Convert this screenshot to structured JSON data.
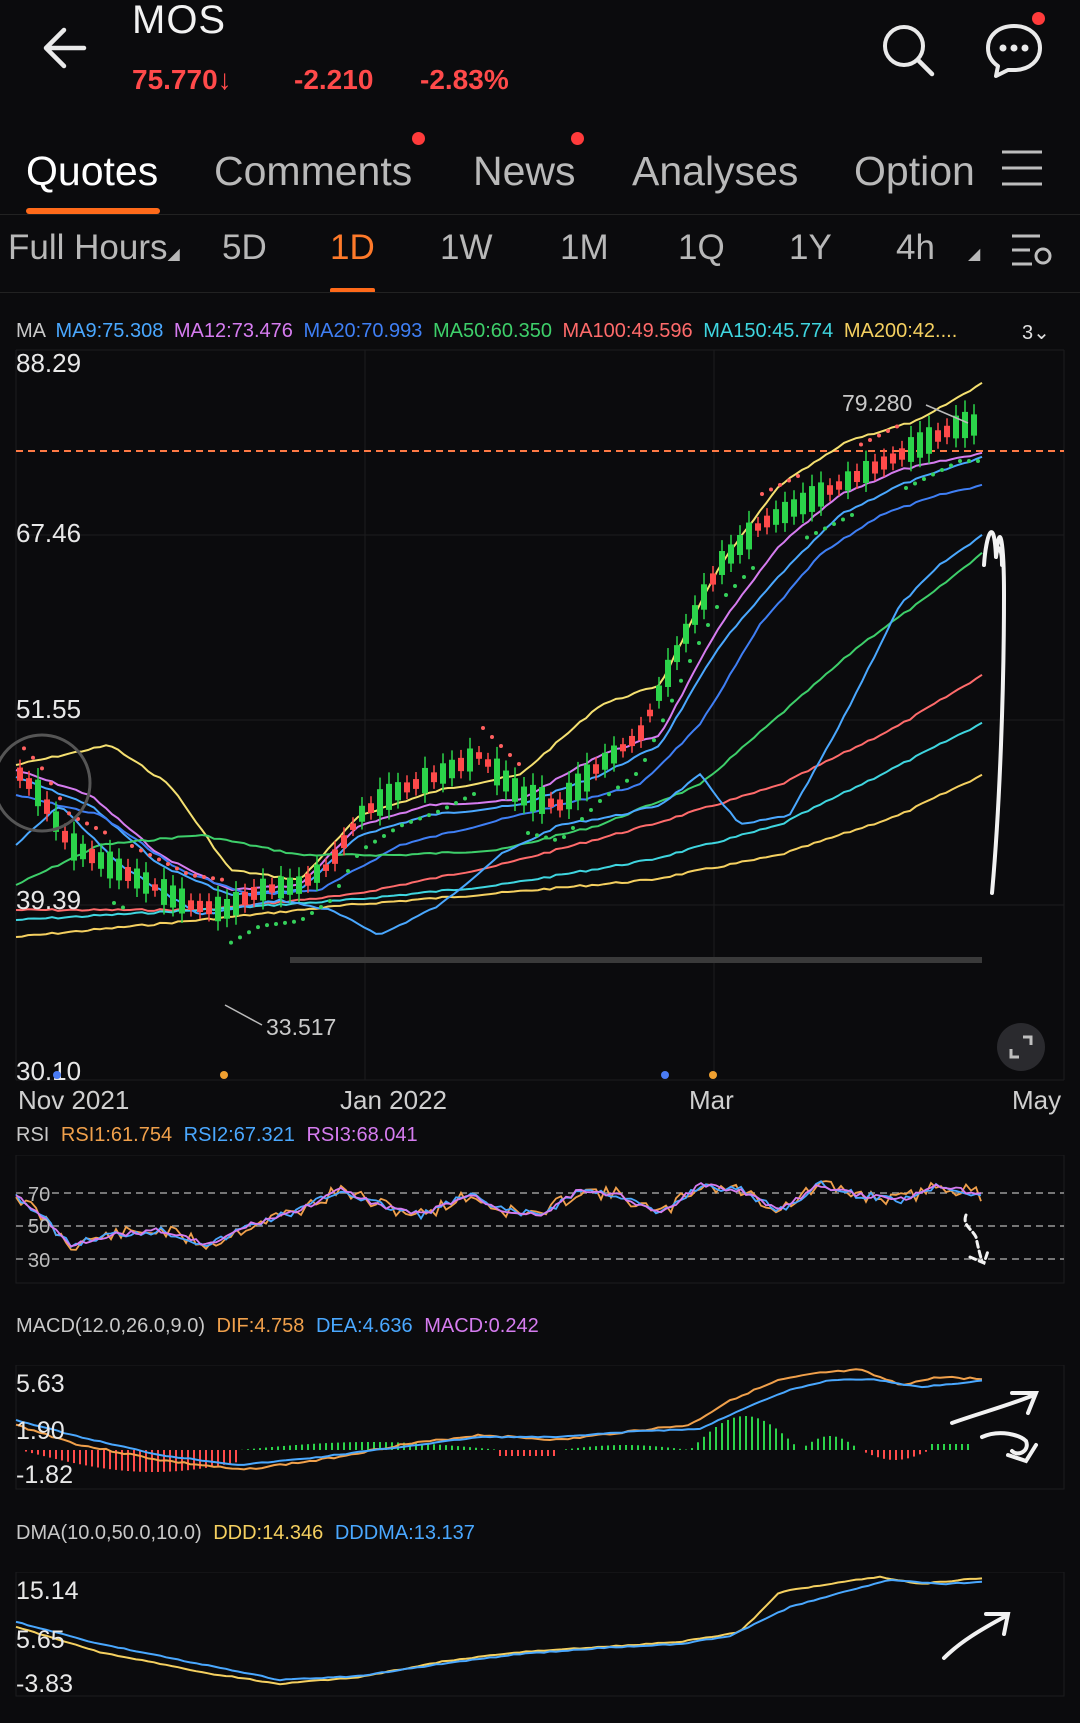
{
  "header": {
    "symbol": "MOS",
    "price": "75.770",
    "change": "-2.210",
    "change_pct": "-2.83%"
  },
  "tabs": [
    "Quotes",
    "Comments",
    "News",
    "Analyses",
    "Option"
  ],
  "timeframes": {
    "full_hours": "Full Hours",
    "items": [
      "5D",
      "1D",
      "1W",
      "1M",
      "1Q",
      "1Y",
      "4h"
    ],
    "active": "1D"
  },
  "ma_legend": {
    "label": "MA",
    "items": [
      {
        "text": "MA9:75.308",
        "color": "#4aa8ff"
      },
      {
        "text": "MA12:73.476",
        "color": "#d67cf0"
      },
      {
        "text": "MA20:70.993",
        "color": "#3f7ff5"
      },
      {
        "text": "MA50:60.350",
        "color": "#3ecf6a"
      },
      {
        "text": "MA100:49.596",
        "color": "#ff6b6b"
      },
      {
        "text": "MA150:45.774",
        "color": "#3fd6e0"
      },
      {
        "text": "MA200:42....",
        "color": "#f5d060"
      }
    ],
    "more": "3"
  },
  "price_chart": {
    "y_ticks": [
      "88.29",
      "67.46",
      "51.55",
      "39.39",
      "30.10"
    ],
    "x_ticks": [
      "Nov 2021",
      "Jan 2022",
      "Mar",
      "May"
    ],
    "high_label": "79.280",
    "low_label": "33.517",
    "current_price_line": 75.77
  },
  "rsi": {
    "label": "RSI",
    "items": [
      {
        "text": "RSI1:61.754",
        "color": "#f0a04b"
      },
      {
        "text": "RSI2:67.321",
        "color": "#4aa8ff"
      },
      {
        "text": "RSI3:68.041",
        "color": "#d67cf0"
      }
    ],
    "levels": [
      "70",
      "50",
      "30"
    ]
  },
  "macd": {
    "label": "MACD(12.0,26.0,9.0)",
    "items": [
      {
        "text": "DIF:4.758",
        "color": "#f0a04b"
      },
      {
        "text": "DEA:4.636",
        "color": "#4aa8ff"
      },
      {
        "text": "MACD:0.242",
        "color": "#d67cf0"
      }
    ],
    "ticks": [
      "5.63",
      "1.90",
      "-1.82"
    ]
  },
  "dma": {
    "label": "DMA(10.0,50.0,10.0)",
    "items": [
      {
        "text": "DDD:14.346",
        "color": "#f5d060"
      },
      {
        "text": "DDDMA:13.137",
        "color": "#4aa8ff"
      }
    ],
    "ticks": [
      "15.14",
      "5.65",
      "-3.83"
    ]
  },
  "colors": {
    "up": "#2bd44a",
    "down": "#ff4a4a",
    "accent": "#ff6a1a",
    "background": "#0b0b0d"
  }
}
